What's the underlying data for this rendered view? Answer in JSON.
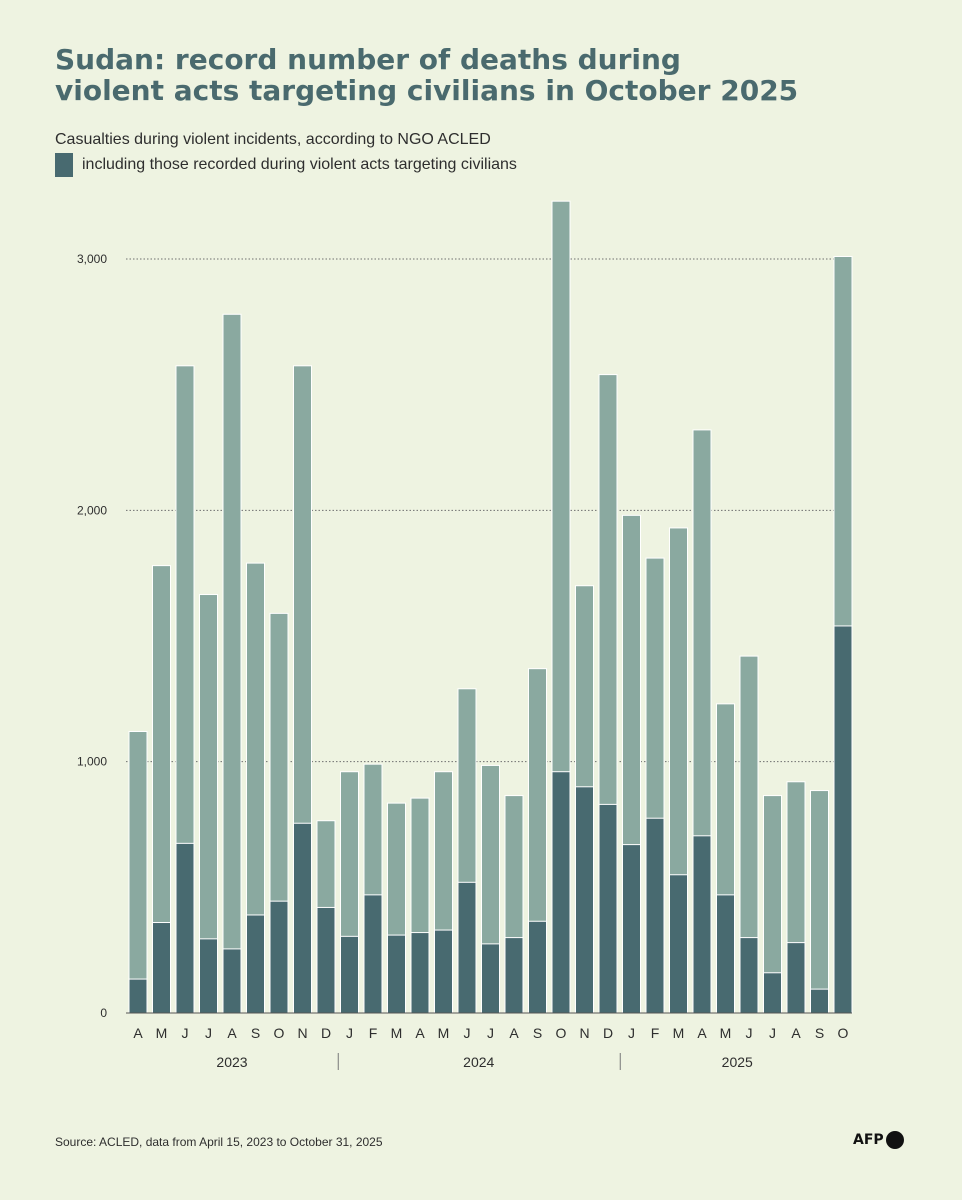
{
  "title_lines": [
    "Sudan: record number of deaths during",
    "violent acts targeting civilians in October 2025"
  ],
  "subtitle": "Casualties during violent incidents, according to NGO ACLED",
  "legend_label": "including those recorded during violent acts targeting civilians",
  "source": "Source: ACLED, data from April 15, 2023 to October 31, 2025",
  "logo": "AFP",
  "colors": {
    "background": "#eef3e1",
    "total_bar": "#8aa9a0",
    "civilian_bar": "#486a70",
    "title": "#4a6a6e",
    "gridline": "#6f6f6f"
  },
  "chart_data": {
    "type": "bar",
    "stacked": "overlay",
    "categories": [
      "A",
      "M",
      "J",
      "J",
      "A",
      "S",
      "O",
      "N",
      "D",
      "J",
      "F",
      "M",
      "A",
      "M",
      "J",
      "J",
      "A",
      "S",
      "O",
      "N",
      "D",
      "J",
      "F",
      "M",
      "A",
      "M",
      "J",
      "J",
      "A",
      "S",
      "O"
    ],
    "year_labels": [
      {
        "label": "2023",
        "from": 0,
        "to": 8
      },
      {
        "label": "2024",
        "from": 9,
        "to": 20
      },
      {
        "label": "2025",
        "from": 21,
        "to": 30
      }
    ],
    "series": [
      {
        "values": [
          1120,
          1780,
          2575,
          1665,
          2780,
          1790,
          1590,
          2575,
          765,
          960,
          990,
          835,
          855,
          960,
          1290,
          985,
          865,
          1370,
          3230,
          1700,
          2540,
          1980,
          1810,
          1930,
          2320,
          1230,
          1420,
          865,
          920,
          885,
          3010
        ]
      },
      {
        "name": "including those recorded during violent acts targeting civilians",
        "values": [
          135,
          360,
          675,
          295,
          255,
          390,
          445,
          755,
          420,
          305,
          470,
          310,
          320,
          330,
          520,
          275,
          300,
          365,
          960,
          900,
          830,
          670,
          775,
          550,
          705,
          470,
          300,
          160,
          280,
          95,
          1540
        ]
      }
    ],
    "yticks": [
      0,
      1000,
      2000,
      3000
    ],
    "ytick_labels": [
      "0",
      "1,000",
      "2,000",
      "3,000"
    ],
    "ylim": [
      0,
      3300
    ],
    "grid": "horizontal-dotted"
  }
}
